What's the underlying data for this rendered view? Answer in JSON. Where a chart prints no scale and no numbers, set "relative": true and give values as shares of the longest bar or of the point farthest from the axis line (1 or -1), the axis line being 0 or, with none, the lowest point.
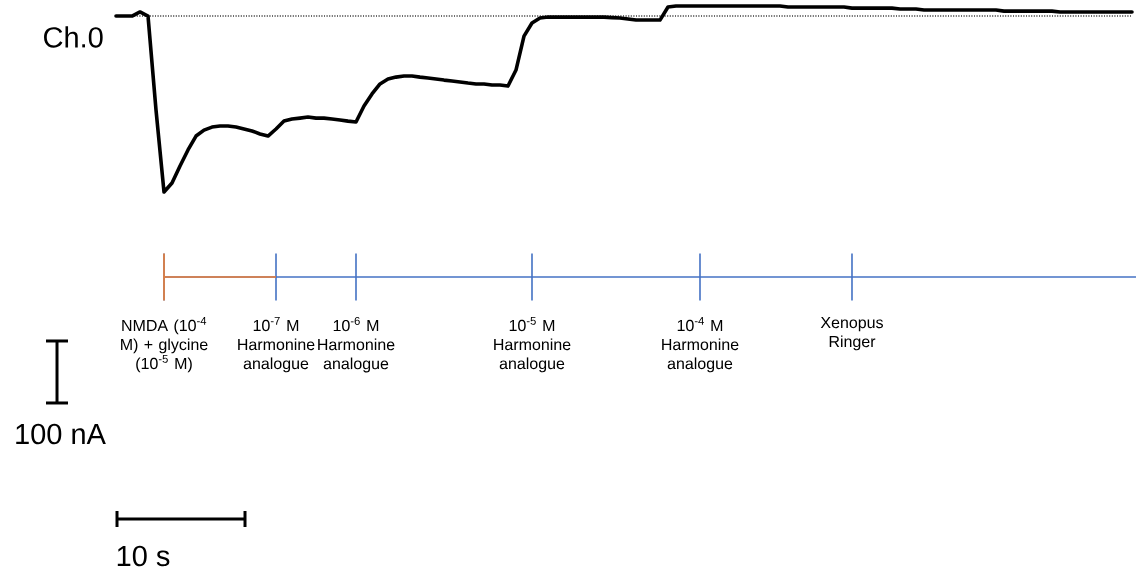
{
  "chart_data": {
    "type": "line",
    "relative": true,
    "tick_labels": "x",
    "line_style": "solid",
    "categories": [
      null,
      null,
      null,
      null,
      null,
      null,
      "NMDA (10$^{-4}$ M) + glycine (10$^{-5}$ M)",
      null,
      null,
      null,
      null,
      null,
      null,
      null,
      null,
      null,
      null,
      null,
      null,
      null,
      "10$^{-7}$ M Harmonine analogue",
      null,
      null,
      null,
      null,
      null,
      null,
      null,
      null,
      null,
      "10$^{-6}$ M Harmonine analogue",
      null,
      null,
      null,
      null,
      null,
      null,
      null,
      null,
      null,
      null,
      null,
      null,
      null,
      null,
      null,
      null,
      null,
      null,
      null,
      null,
      null,
      "10$^{-5}$ M Harmonine analogue",
      null,
      null,
      null,
      null,
      null,
      null,
      null,
      null,
      null,
      null,
      null,
      null,
      null,
      null,
      null,
      null,
      null,
      null,
      null,
      null,
      "10$^{-4}$ M Harmonine analogue",
      null,
      null,
      null,
      null,
      null,
      null,
      null,
      null,
      null,
      null,
      null,
      null,
      null,
      null,
      null,
      null,
      null,
      null,
      "Xenopus Ringer",
      null,
      null,
      null,
      null,
      null,
      null,
      null,
      null,
      null,
      null,
      null,
      null,
      null,
      null,
      null,
      null,
      null,
      null,
      null,
      null,
      null,
      null,
      null,
      null,
      null,
      null,
      null,
      null,
      null,
      null,
      null,
      null,
      null,
      null,
      null
    ],
    "series": [
      {
        "name": "Ch.0",
        "color": "#000000",
        "values": [
          0,
          0,
          0,
          0.023,
          0,
          -0.534,
          -1,
          -0.949,
          -0.852,
          -0.761,
          -0.682,
          -0.648,
          -0.631,
          -0.625,
          -0.625,
          -0.631,
          -0.642,
          -0.653,
          -0.67,
          -0.682,
          -0.642,
          -0.597,
          -0.585,
          -0.58,
          -0.574,
          -0.58,
          -0.58,
          -0.585,
          -0.591,
          -0.597,
          -0.602,
          -0.511,
          -0.443,
          -0.386,
          -0.358,
          -0.347,
          -0.341,
          -0.341,
          -0.347,
          -0.352,
          -0.358,
          -0.364,
          -0.369,
          -0.375,
          -0.381,
          -0.386,
          -0.386,
          -0.392,
          -0.392,
          -0.398,
          -0.307,
          -0.114,
          -0.04,
          -0.011,
          -0.006,
          -0.006,
          -0.006,
          -0.006,
          -0.006,
          -0.006,
          -0.006,
          -0.006,
          -0.009,
          -0.011,
          -0.017,
          -0.023,
          -0.023,
          -0.023,
          -0.023,
          0.051,
          0.057,
          0.057,
          0.057,
          0.057,
          0.057,
          0.057,
          0.057,
          0.057,
          0.057,
          0.057,
          0.057,
          0.057,
          0.057,
          0.057,
          0.051,
          0.051,
          0.051,
          0.051,
          0.051,
          0.051,
          0.051,
          0.051,
          0.045,
          0.045,
          0.045,
          0.045,
          0.045,
          0.045,
          0.04,
          0.04,
          0.04,
          0.034,
          0.034,
          0.034,
          0.034,
          0.034,
          0.034,
          0.034,
          0.034,
          0.034,
          0.034,
          0.028,
          0.028,
          0.028,
          0.028,
          0.028,
          0.028,
          0.028,
          0.023,
          0.023,
          0.023,
          0.023,
          0.023,
          0.023,
          0.023,
          0.023,
          0.023,
          0.023
        ]
      }
    ],
    "ref_lines": [
      {
        "axis": "y",
        "value": 0,
        "color": "#3a3a3a",
        "line_style": "dotted"
      }
    ],
    "annotations": [
      "100 nA",
      "10 s"
    ]
  }
}
